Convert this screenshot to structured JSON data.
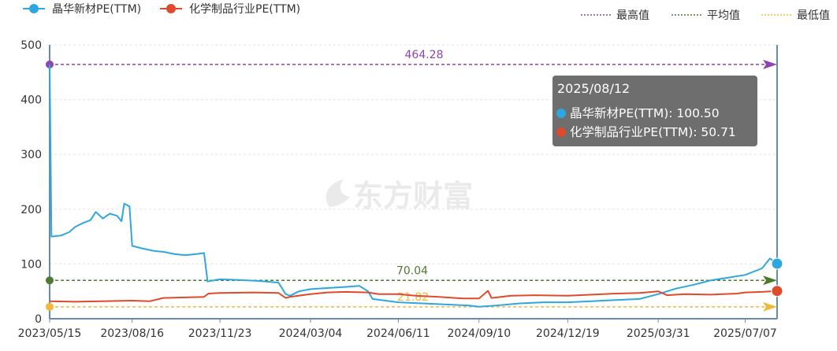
{
  "chart_data": {
    "type": "line",
    "legend": [
      {
        "name": "晶华新材PE(TTM)",
        "color": "#2ea7e0"
      },
      {
        "name": "化学制品行业PE(TTM)",
        "color": "#e04a2c"
      }
    ],
    "mark_legend": [
      {
        "name": "最高值",
        "color": "#8e44ad"
      },
      {
        "name": "平均值",
        "color": "#4d7a2e"
      },
      {
        "name": "最低值",
        "color": "#f0b93d"
      }
    ],
    "watermark": "东方财富",
    "x_ticks": [
      "2023/05/15",
      "2023/08/16",
      "2023/11/23",
      "2024/03/04",
      "2024/06/11",
      "2024/09/10",
      "2024/12/19",
      "2025/03/31",
      "2025/07/07"
    ],
    "x_range": [
      "2023/05/15",
      "2025/08/12"
    ],
    "ylim": [
      0,
      500
    ],
    "y_ticks": [
      0,
      100,
      200,
      300,
      400,
      500
    ],
    "grid": "horizontal dashed",
    "legend_position": "top",
    "series": [
      {
        "name": "晶华新材PE(TTM)",
        "color": "#2ea7e0",
        "points": [
          [
            "2023/05/15",
            464.28
          ],
          [
            "2023/05/17",
            150
          ],
          [
            "2023/05/28",
            152
          ],
          [
            "2023/06/06",
            158
          ],
          [
            "2023/06/13",
            168
          ],
          [
            "2023/06/22",
            175
          ],
          [
            "2023/06/30",
            180
          ],
          [
            "2023/07/06",
            195
          ],
          [
            "2023/07/14",
            183
          ],
          [
            "2023/07/22",
            192
          ],
          [
            "2023/07/30",
            188
          ],
          [
            "2023/08/04",
            178
          ],
          [
            "2023/08/07",
            210
          ],
          [
            "2023/08/13",
            205
          ],
          [
            "2023/08/16",
            133
          ],
          [
            "2023/08/28",
            128
          ],
          [
            "2023/09/09",
            124
          ],
          [
            "2023/09/21",
            122
          ],
          [
            "2023/10/03",
            118
          ],
          [
            "2023/10/15",
            116
          ],
          [
            "2023/10/27",
            118
          ],
          [
            "2023/11/05",
            120
          ],
          [
            "2023/11/09",
            68
          ],
          [
            "2023/11/23",
            72
          ],
          [
            "2023/12/12",
            71
          ],
          [
            "2024/01/06",
            69
          ],
          [
            "2024/01/28",
            66
          ],
          [
            "2024/02/05",
            45
          ],
          [
            "2024/02/10",
            42
          ],
          [
            "2024/02/20",
            50
          ],
          [
            "2024/03/04",
            54
          ],
          [
            "2024/03/23",
            56
          ],
          [
            "2024/04/12",
            58
          ],
          [
            "2024/04/28",
            60
          ],
          [
            "2024/05/08",
            50
          ],
          [
            "2024/05/13",
            36
          ],
          [
            "2024/06/11",
            30
          ],
          [
            "2024/07/08",
            28
          ],
          [
            "2024/08/04",
            26
          ],
          [
            "2024/08/30",
            24
          ],
          [
            "2024/09/10",
            22
          ],
          [
            "2024/09/29",
            24
          ],
          [
            "2024/10/26",
            28
          ],
          [
            "2024/11/22",
            30
          ],
          [
            "2024/12/19",
            30
          ],
          [
            "2025/01/15",
            32
          ],
          [
            "2025/02/11",
            34
          ],
          [
            "2025/03/10",
            36
          ],
          [
            "2025/03/31",
            45
          ],
          [
            "2025/04/20",
            55
          ],
          [
            "2025/05/10",
            62
          ],
          [
            "2025/05/29",
            70
          ],
          [
            "2025/06/18",
            75
          ],
          [
            "2025/07/07",
            80
          ],
          [
            "2025/07/26",
            92
          ],
          [
            "2025/08/04",
            110
          ],
          [
            "2025/08/12",
            100.5
          ]
        ]
      },
      {
        "name": "化学制品行业PE(TTM)",
        "color": "#e04a2c",
        "points": [
          [
            "2023/05/15",
            32
          ],
          [
            "2023/06/13",
            31
          ],
          [
            "2023/07/14",
            32
          ],
          [
            "2023/08/16",
            33
          ],
          [
            "2023/09/05",
            32
          ],
          [
            "2023/09/20",
            38
          ],
          [
            "2023/10/15",
            39
          ],
          [
            "2023/11/05",
            40
          ],
          [
            "2023/11/10",
            46
          ],
          [
            "2023/11/23",
            47
          ],
          [
            "2023/12/31",
            48
          ],
          [
            "2024/01/28",
            47
          ],
          [
            "2024/02/05",
            38
          ],
          [
            "2024/02/10",
            40
          ],
          [
            "2024/03/04",
            45
          ],
          [
            "2024/03/23",
            48
          ],
          [
            "2024/04/12",
            49
          ],
          [
            "2024/05/08",
            48
          ],
          [
            "2024/05/20",
            45
          ],
          [
            "2024/06/11",
            45
          ],
          [
            "2024/06/30",
            42
          ],
          [
            "2024/07/27",
            40
          ],
          [
            "2024/08/23",
            37
          ],
          [
            "2024/09/10",
            37
          ],
          [
            "2024/09/20",
            51
          ],
          [
            "2024/09/24",
            38
          ],
          [
            "2024/10/16",
            42
          ],
          [
            "2024/11/12",
            43
          ],
          [
            "2024/12/19",
            42
          ],
          [
            "2025/01/15",
            44
          ],
          [
            "2025/02/11",
            46
          ],
          [
            "2025/03/10",
            47
          ],
          [
            "2025/03/31",
            50
          ],
          [
            "2025/04/10",
            43
          ],
          [
            "2025/04/30",
            45
          ],
          [
            "2025/05/29",
            44
          ],
          [
            "2025/06/28",
            46
          ],
          [
            "2025/07/07",
            48
          ],
          [
            "2025/07/26",
            49
          ],
          [
            "2025/08/12",
            50.71
          ]
        ]
      }
    ],
    "mark_lines": [
      {
        "name": "最高值",
        "value": 464.28,
        "label": "464.28",
        "color": "#8e44ad"
      },
      {
        "name": "平均值",
        "value": 70.04,
        "label": "70.04",
        "color": "#4d7a2e"
      },
      {
        "name": "最低值",
        "value": 21.82,
        "label": "21.82",
        "color": "#f0b93d"
      }
    ],
    "tooltip": {
      "date": "2025/08/12",
      "rows": [
        {
          "text": "晶华新材PE(TTM): 100.50",
          "color": "#2ea7e0"
        },
        {
          "text": "化学制品行业PE(TTM): 50.71",
          "color": "#e04a2c"
        }
      ]
    }
  }
}
